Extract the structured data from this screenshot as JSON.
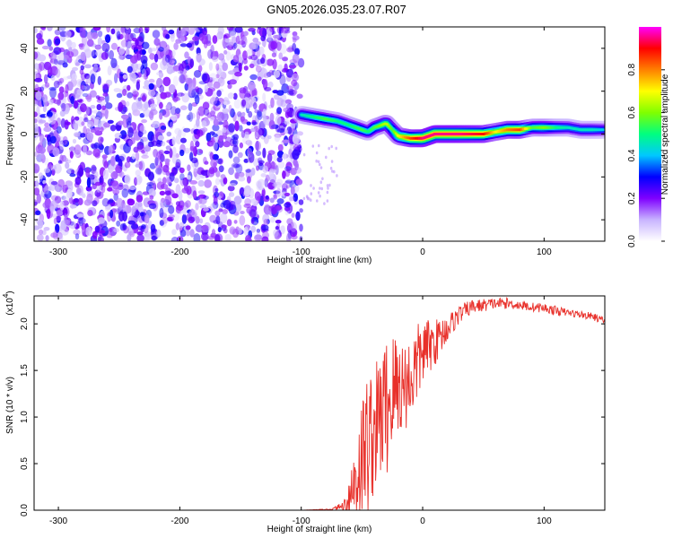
{
  "title": "GN05.2026.035.23.07.R07",
  "chart_data": [
    {
      "type": "heatmap",
      "xlabel": "Height of straight line (km)",
      "ylabel": "Frequency (Hz)",
      "xlim": [
        -320,
        150
      ],
      "ylim": [
        -50,
        50
      ],
      "xticks": [
        -300,
        -200,
        -100,
        0,
        100
      ],
      "yticks": [
        -40,
        -20,
        0,
        20,
        40
      ],
      "colorbar": {
        "label": "Normalized spectral amplitude",
        "range": [
          0,
          1
        ],
        "ticks": [
          0.0,
          0.2,
          0.4,
          0.6,
          0.8
        ],
        "tick_labels": [
          "0.0",
          "0.2",
          "0.4",
          "0.6",
          "0.8"
        ],
        "colors": [
          "#ffffff",
          "#c8b4ff",
          "#7f00ff",
          "#0000ff",
          "#00c8ff",
          "#00ff80",
          "#80ff00",
          "#ffff00",
          "#ff8000",
          "#ff0000",
          "#ff00ff"
        ]
      },
      "noise_region": {
        "x_range": [
          -320,
          -100
        ],
        "amplitude_range": [
          0.05,
          0.3
        ]
      },
      "ridge": {
        "x": [
          -100,
          -90,
          -80,
          -70,
          -60,
          -50,
          -45,
          -40,
          -35,
          -30,
          -25,
          -20,
          -10,
          0,
          10,
          30,
          50,
          60,
          70,
          80,
          90,
          100,
          110,
          120,
          130,
          140,
          150
        ],
        "freq": [
          9,
          8,
          7,
          6,
          4,
          2,
          1,
          3,
          4,
          5,
          2,
          -1,
          -2,
          -2,
          0,
          0,
          0,
          1,
          2,
          2,
          3,
          3,
          3,
          3,
          2,
          2,
          2
        ],
        "amplitude": [
          0.45,
          0.5,
          0.55,
          0.5,
          0.5,
          0.55,
          0.5,
          0.55,
          0.6,
          0.65,
          0.55,
          0.7,
          0.85,
          0.95,
          0.95,
          0.95,
          0.9,
          0.7,
          0.8,
          0.85,
          0.55,
          0.6,
          0.5,
          0.45,
          0.45,
          0.45,
          0.4
        ]
      }
    },
    {
      "type": "line",
      "xlabel": "Height of straight line (km)",
      "ylabel": "SNR (10 * v/v)",
      "yscale_label": "(x10",
      "yscale_exponent": "4",
      "yscale_close": ")",
      "xlim": [
        -320,
        150
      ],
      "ylim": [
        0,
        2.3
      ],
      "xticks": [
        -300,
        -200,
        -100,
        0,
        100
      ],
      "yticks": [
        0.0,
        0.5,
        1.0,
        1.5,
        2.0
      ],
      "ytick_labels": [
        "0.0",
        "0.5",
        "1.0",
        "1.5",
        "2.0"
      ],
      "color": "#e8302a",
      "series": [
        {
          "name": "SNR",
          "x": [
            -320,
            -200,
            -100,
            -75,
            -65,
            -60,
            -55,
            -50,
            -45,
            -40,
            -35,
            -30,
            -25,
            -20,
            -15,
            -10,
            -5,
            0,
            10,
            20,
            30,
            40,
            50,
            60,
            70,
            80,
            90,
            100,
            110,
            120,
            130,
            140,
            150
          ],
          "y": [
            0.0,
            0.0,
            0.0,
            0.01,
            0.05,
            0.15,
            0.35,
            0.55,
            0.75,
            0.85,
            1.0,
            1.1,
            1.25,
            1.35,
            1.35,
            1.4,
            1.55,
            1.7,
            1.8,
            1.95,
            2.1,
            2.18,
            2.2,
            2.22,
            2.22,
            2.2,
            2.18,
            2.17,
            2.14,
            2.12,
            2.1,
            2.08,
            2.03
          ],
          "noise_amplitude": [
            0,
            0,
            0,
            0.005,
            0.05,
            0.3,
            0.6,
            0.7,
            0.8,
            0.7,
            0.7,
            0.8,
            0.7,
            0.6,
            0.5,
            0.5,
            0.45,
            0.35,
            0.25,
            0.15,
            0.1,
            0.08,
            0.07,
            0.06,
            0.06,
            0.05,
            0.05,
            0.05,
            0.05,
            0.04,
            0.04,
            0.04,
            0.04
          ]
        }
      ]
    }
  ]
}
